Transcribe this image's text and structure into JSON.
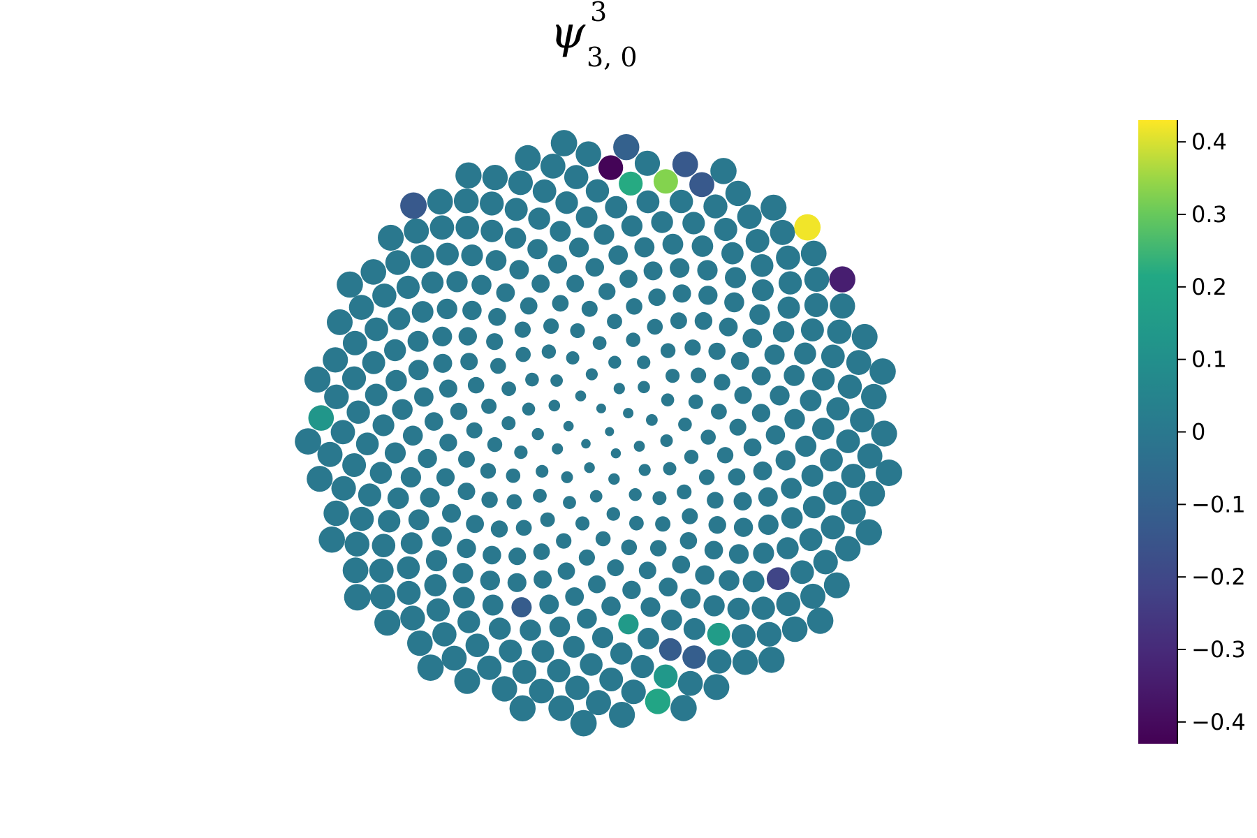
{
  "chart_data": {
    "type": "scatter",
    "title": {
      "symbol": "ψ",
      "superscript": "3",
      "subscript": "3, 0"
    },
    "points": {
      "count": 400,
      "layout": "sunflower-spiral",
      "default_value": 0.0
    },
    "highlighted_points": [
      {
        "index": 395,
        "value": 0.42
      },
      {
        "index": 324,
        "value": -0.42
      },
      {
        "index": 382,
        "value": -0.34
      },
      {
        "index": 311,
        "value": 0.33
      },
      {
        "index": 290,
        "value": 0.22
      },
      {
        "index": 354,
        "value": 0.2
      },
      {
        "index": 257,
        "value": 0.16
      },
      {
        "index": 176,
        "value": 0.15
      },
      {
        "index": 249,
        "value": -0.21
      },
      {
        "index": 360,
        "value": 0.13
      },
      {
        "index": 290,
        "value": 0.22
      },
      {
        "index": 332,
        "value": -0.13
      },
      {
        "index": 397,
        "value": -0.13
      },
      {
        "index": 366,
        "value": -0.13
      },
      {
        "index": 171,
        "value": -0.12
      },
      {
        "index": 299,
        "value": 0.14
      },
      {
        "index": 278,
        "value": -0.11
      },
      {
        "index": 379,
        "value": -0.1
      },
      {
        "index": 244,
        "value": -0.12
      }
    ],
    "colorbar": {
      "colormap": "viridis",
      "range": [
        -0.43,
        0.43
      ],
      "ticks": [
        0.4,
        0.3,
        0.2,
        0.1,
        0,
        -0.1,
        -0.2,
        -0.3,
        -0.4
      ],
      "tick_labels": [
        "0.4",
        "0.3",
        "0.2",
        "0.1",
        "0",
        "−0.1",
        "−0.2",
        "−0.3",
        "−0.4"
      ]
    },
    "grid": false,
    "axes_visible": false,
    "legend": "none"
  }
}
